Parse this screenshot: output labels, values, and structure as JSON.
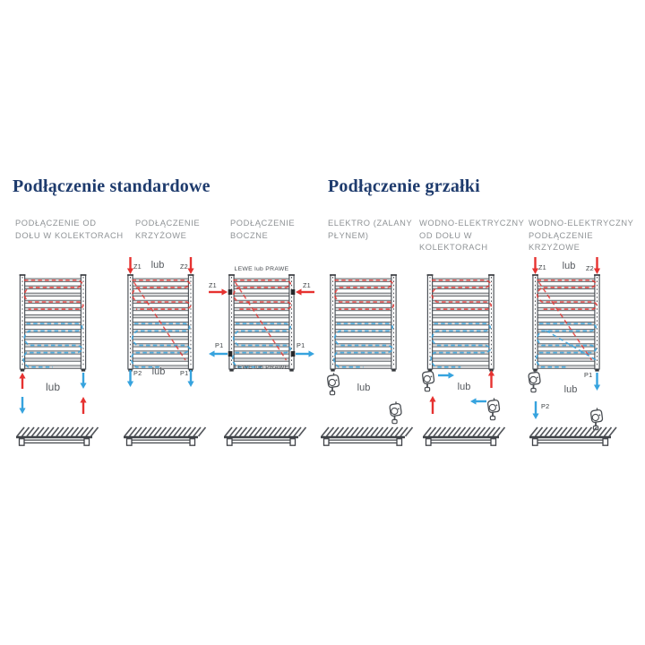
{
  "headings": {
    "standard": "Podłączenie standardowe",
    "heater": "Podłączenie grzałki"
  },
  "columns": [
    {
      "id": "od-dolu-w-kolektorach",
      "lines": [
        "PODŁĄCZENIE OD",
        "DOŁU W KOLEKTORACH"
      ]
    },
    {
      "id": "krzyzowe",
      "lines": [
        "PODŁĄCZENIE",
        "KRZYŻOWE"
      ]
    },
    {
      "id": "boczne",
      "lines": [
        "PODŁĄCZENIE",
        "BOCZNE"
      ]
    },
    {
      "id": "elektro",
      "lines": [
        "ELEKTRO (ZALANY",
        "PŁYNEM)"
      ]
    },
    {
      "id": "wodno-elektryczny-od-dolu",
      "lines": [
        "WODNO-ELEKTRYCZNY",
        "OD DOŁU W",
        "KOLEKTORACH"
      ]
    },
    {
      "id": "wodno-elektryczny-krzyzowe",
      "lines": [
        "WODNO-ELEKTRYCZNY",
        "PODŁĄCZENIE",
        "KRZYŻOWE"
      ]
    }
  ],
  "labels": {
    "lub": "lub",
    "z1": "Z1",
    "z2": "Z2",
    "p1": "P1",
    "p2": "P2",
    "side_note": "LEWE lub PRAWE"
  },
  "colors": {
    "supply_red": "#e63230",
    "return_blue": "#36a3de",
    "heading_navy": "#1e3b6d",
    "column_label_gray": "#8f9396",
    "outline_dark": "#4a4e53",
    "rung_fill": "#d9dadb"
  }
}
